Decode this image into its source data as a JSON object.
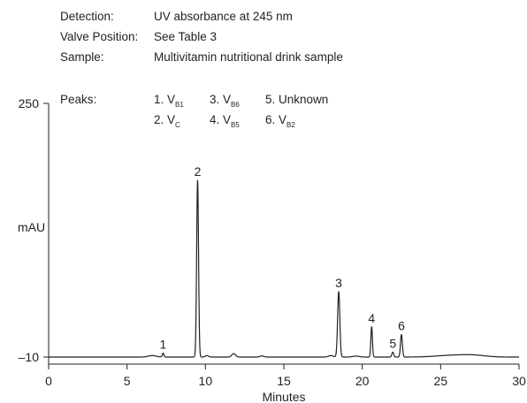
{
  "info": {
    "detection_label": "Detection:",
    "detection_value": "UV absorbance at 245 nm",
    "valve_label": "Valve Position:",
    "valve_value": "See Table 3",
    "sample_label": "Sample:",
    "sample_value": "Multivitamin nutritional drink sample"
  },
  "legend": {
    "title": "Peaks:",
    "entries": [
      {
        "num": "1.",
        "main": "V",
        "sub": "B1"
      },
      {
        "num": "2.",
        "main": "V",
        "sub": "C"
      },
      {
        "num": "3.",
        "main": "V",
        "sub": "B6"
      },
      {
        "num": "4.",
        "main": "V",
        "sub": "B5"
      },
      {
        "num": "5.",
        "main": "Unknown",
        "sub": ""
      },
      {
        "num": "6.",
        "main": "V",
        "sub": "B2"
      }
    ]
  },
  "chart_data": {
    "type": "line",
    "xlabel": "Minutes",
    "ylabel": "mAU",
    "xlim": [
      0,
      30
    ],
    "ylim": [
      -10,
      250
    ],
    "x_ticks": [
      0,
      5,
      10,
      15,
      20,
      25,
      30
    ],
    "y_ticks": [
      -10,
      250
    ],
    "y_tick_labels": [
      "–10",
      "250"
    ],
    "baseline": -10,
    "peaks": [
      {
        "label": "1",
        "time": 7.3,
        "height": 4,
        "width": 0.05
      },
      {
        "label": "2",
        "time": 9.5,
        "height": 181,
        "width": 0.06
      },
      {
        "label": "3",
        "time": 18.5,
        "height": 67,
        "width": 0.07
      },
      {
        "label": "4",
        "time": 20.6,
        "height": 31,
        "width": 0.05
      },
      {
        "label": "5",
        "time": 21.95,
        "height": 5,
        "width": 0.06
      },
      {
        "label": "6",
        "time": 22.5,
        "height": 23,
        "width": 0.06
      }
    ],
    "minor_bumps": [
      {
        "time": 6.6,
        "height": 1.5,
        "width": 0.25
      },
      {
        "time": 10.1,
        "height": 1.5,
        "width": 0.1
      },
      {
        "time": 11.8,
        "height": 3.5,
        "width": 0.12
      },
      {
        "time": 13.6,
        "height": 1.2,
        "width": 0.12
      },
      {
        "time": 18.0,
        "height": 1.5,
        "width": 0.15
      },
      {
        "time": 19.6,
        "height": 1.0,
        "width": 0.2
      },
      {
        "time": 25.5,
        "height": 1.5,
        "width": 0.9
      },
      {
        "time": 27.0,
        "height": 2.0,
        "width": 0.8
      }
    ]
  }
}
